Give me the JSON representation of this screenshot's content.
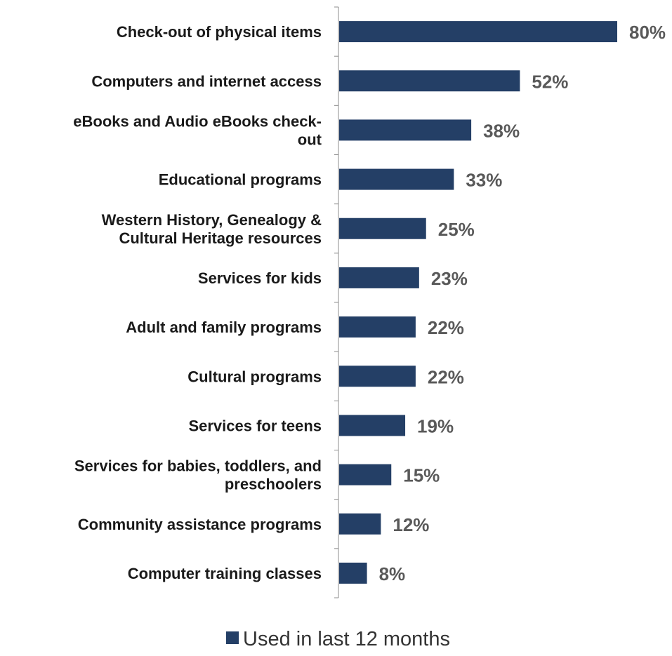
{
  "chart_data": {
    "type": "bar",
    "orientation": "horizontal",
    "categories": [
      [
        "Check-out of physical items"
      ],
      [
        "Computers and internet access"
      ],
      [
        "eBooks and Audio eBooks check-",
        "out"
      ],
      [
        "Educational programs"
      ],
      [
        "Western History, Genealogy &",
        "Cultural Heritage resources"
      ],
      [
        "Services for kids"
      ],
      [
        "Adult and family programs"
      ],
      [
        "Cultural programs"
      ],
      [
        "Services for teens"
      ],
      [
        "Services for babies, toddlers, and",
        "preschoolers"
      ],
      [
        "Community assistance programs"
      ],
      [
        "Computer training classes"
      ]
    ],
    "series": [
      {
        "name": "Used in last 12 months",
        "values": [
          80,
          52,
          38,
          33,
          25,
          23,
          22,
          22,
          19,
          15,
          12,
          8
        ],
        "value_labels": [
          "80%",
          "52%",
          "38%",
          "33%",
          "25%",
          "23%",
          "22%",
          "22%",
          "19%",
          "15%",
          "12%",
          "8%"
        ],
        "color": "#243f66"
      }
    ],
    "xlim": [
      0,
      80
    ],
    "grid": false,
    "legend_position": "bottom",
    "label_color": "#595959",
    "category_color": "#1a1a1a"
  }
}
